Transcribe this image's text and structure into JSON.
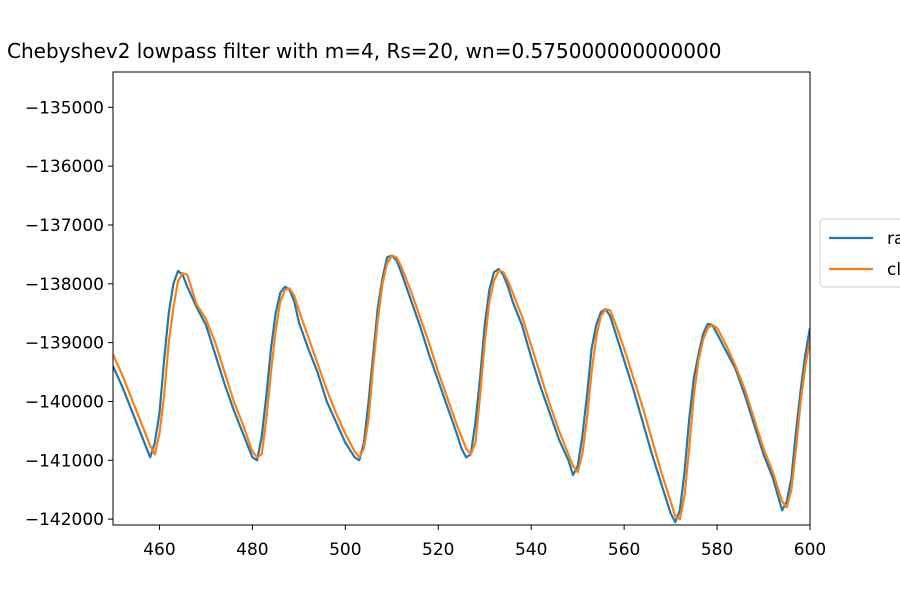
{
  "chart_data": {
    "type": "line",
    "title": "Chebyshev2 lowpass filter with m=4, Rs=20, wn=0.575000000000000",
    "xlabel": "",
    "ylabel": "",
    "xlim": [
      450,
      600
    ],
    "ylim": [
      -142100,
      -134400
    ],
    "xticks": [
      460,
      480,
      500,
      520,
      540,
      560,
      580,
      600
    ],
    "yticks": [
      -142000,
      -141000,
      -140000,
      -139000,
      -138000,
      -137000,
      -136000,
      -135000
    ],
    "xtick_labels": [
      "460",
      "480",
      "500",
      "520",
      "540",
      "560",
      "580",
      "600"
    ],
    "ytick_labels": [
      "−142000",
      "−141000",
      "−140000",
      "−139000",
      "−138000",
      "−137000",
      "−136000",
      "−135000"
    ],
    "grid": false,
    "legend_placement": "center-right (partially cut off)",
    "series": [
      {
        "name": "ra",
        "color": "#1f77b4",
        "points": [
          [
            450,
            -139400
          ],
          [
            452,
            -139750
          ],
          [
            454,
            -140150
          ],
          [
            456,
            -140550
          ],
          [
            458,
            -140950
          ],
          [
            459,
            -140700
          ],
          [
            460,
            -140200
          ],
          [
            461,
            -139300
          ],
          [
            462,
            -138500
          ],
          [
            463,
            -138000
          ],
          [
            464,
            -137780
          ],
          [
            465,
            -137850
          ],
          [
            466,
            -138050
          ],
          [
            468,
            -138400
          ],
          [
            470,
            -138700
          ],
          [
            472,
            -139200
          ],
          [
            474,
            -139700
          ],
          [
            476,
            -140150
          ],
          [
            478,
            -140550
          ],
          [
            480,
            -140950
          ],
          [
            481,
            -141000
          ],
          [
            482,
            -140600
          ],
          [
            483,
            -139900
          ],
          [
            484,
            -139100
          ],
          [
            485,
            -138500
          ],
          [
            486,
            -138150
          ],
          [
            487,
            -138050
          ],
          [
            488,
            -138100
          ],
          [
            489,
            -138300
          ],
          [
            490,
            -138650
          ],
          [
            492,
            -139100
          ],
          [
            494,
            -139500
          ],
          [
            496,
            -140000
          ],
          [
            498,
            -140350
          ],
          [
            500,
            -140700
          ],
          [
            502,
            -140950
          ],
          [
            503,
            -141000
          ],
          [
            504,
            -140700
          ],
          [
            505,
            -140000
          ],
          [
            506,
            -139200
          ],
          [
            507,
            -138400
          ],
          [
            508,
            -137900
          ],
          [
            509,
            -137550
          ],
          [
            510,
            -137520
          ],
          [
            511,
            -137600
          ],
          [
            512,
            -137800
          ],
          [
            514,
            -138250
          ],
          [
            516,
            -138700
          ],
          [
            518,
            -139200
          ],
          [
            520,
            -139650
          ],
          [
            522,
            -140100
          ],
          [
            524,
            -140550
          ],
          [
            525,
            -140800
          ],
          [
            526,
            -140950
          ],
          [
            527,
            -140900
          ],
          [
            528,
            -140350
          ],
          [
            529,
            -139600
          ],
          [
            530,
            -138700
          ],
          [
            531,
            -138100
          ],
          [
            532,
            -137800
          ],
          [
            533,
            -137750
          ],
          [
            534,
            -137850
          ],
          [
            535,
            -138050
          ],
          [
            536,
            -138300
          ],
          [
            538,
            -138700
          ],
          [
            540,
            -139250
          ],
          [
            542,
            -139750
          ],
          [
            544,
            -140200
          ],
          [
            546,
            -140650
          ],
          [
            548,
            -141000
          ],
          [
            549,
            -141250
          ],
          [
            550,
            -141100
          ],
          [
            551,
            -140600
          ],
          [
            552,
            -139900
          ],
          [
            553,
            -139100
          ],
          [
            554,
            -138700
          ],
          [
            555,
            -138480
          ],
          [
            556,
            -138430
          ],
          [
            557,
            -138550
          ],
          [
            558,
            -138800
          ],
          [
            560,
            -139300
          ],
          [
            562,
            -139800
          ],
          [
            564,
            -140350
          ],
          [
            566,
            -140900
          ],
          [
            568,
            -141400
          ],
          [
            570,
            -141900
          ],
          [
            571,
            -142050
          ],
          [
            572,
            -141850
          ],
          [
            573,
            -141200
          ],
          [
            574,
            -140300
          ],
          [
            575,
            -139600
          ],
          [
            576,
            -139200
          ],
          [
            577,
            -138850
          ],
          [
            578,
            -138680
          ],
          [
            579,
            -138700
          ],
          [
            580,
            -138850
          ],
          [
            582,
            -139150
          ],
          [
            584,
            -139450
          ],
          [
            586,
            -139900
          ],
          [
            588,
            -140400
          ],
          [
            590,
            -140900
          ],
          [
            592,
            -141300
          ],
          [
            594,
            -141850
          ],
          [
            595,
            -141700
          ],
          [
            596,
            -141300
          ],
          [
            597,
            -140500
          ],
          [
            598,
            -139800
          ],
          [
            599,
            -139200
          ],
          [
            600,
            -138750
          ]
        ]
      },
      {
        "name": "cl",
        "color": "#ff7f0e",
        "points": [
          [
            450,
            -139200
          ],
          [
            452,
            -139550
          ],
          [
            454,
            -139950
          ],
          [
            456,
            -140350
          ],
          [
            458,
            -140750
          ],
          [
            459,
            -140900
          ],
          [
            460,
            -140550
          ],
          [
            461,
            -139900
          ],
          [
            462,
            -139000
          ],
          [
            463,
            -138400
          ],
          [
            464,
            -137950
          ],
          [
            465,
            -137820
          ],
          [
            466,
            -137850
          ],
          [
            467,
            -138100
          ],
          [
            468,
            -138350
          ],
          [
            470,
            -138600
          ],
          [
            472,
            -139000
          ],
          [
            474,
            -139500
          ],
          [
            476,
            -140000
          ],
          [
            478,
            -140400
          ],
          [
            480,
            -140850
          ],
          [
            481,
            -140950
          ],
          [
            482,
            -140900
          ],
          [
            483,
            -140300
          ],
          [
            484,
            -139500
          ],
          [
            485,
            -138800
          ],
          [
            486,
            -138300
          ],
          [
            487,
            -138100
          ],
          [
            488,
            -138080
          ],
          [
            489,
            -138200
          ],
          [
            490,
            -138450
          ],
          [
            492,
            -138900
          ],
          [
            494,
            -139350
          ],
          [
            496,
            -139800
          ],
          [
            498,
            -140200
          ],
          [
            500,
            -140550
          ],
          [
            502,
            -140850
          ],
          [
            503,
            -140950
          ],
          [
            504,
            -140800
          ],
          [
            505,
            -140300
          ],
          [
            506,
            -139400
          ],
          [
            507,
            -138600
          ],
          [
            508,
            -138000
          ],
          [
            509,
            -137650
          ],
          [
            510,
            -137520
          ],
          [
            511,
            -137550
          ],
          [
            512,
            -137700
          ],
          [
            514,
            -138100
          ],
          [
            516,
            -138550
          ],
          [
            518,
            -139000
          ],
          [
            520,
            -139500
          ],
          [
            522,
            -139950
          ],
          [
            524,
            -140400
          ],
          [
            526,
            -140800
          ],
          [
            527,
            -140900
          ],
          [
            528,
            -140700
          ],
          [
            529,
            -139900
          ],
          [
            530,
            -139000
          ],
          [
            531,
            -138300
          ],
          [
            532,
            -137950
          ],
          [
            533,
            -137780
          ],
          [
            534,
            -137800
          ],
          [
            535,
            -137950
          ],
          [
            536,
            -138150
          ],
          [
            538,
            -138550
          ],
          [
            540,
            -139050
          ],
          [
            542,
            -139550
          ],
          [
            544,
            -140050
          ],
          [
            546,
            -140500
          ],
          [
            548,
            -140900
          ],
          [
            549,
            -141100
          ],
          [
            550,
            -141200
          ],
          [
            551,
            -140900
          ],
          [
            552,
            -140300
          ],
          [
            553,
            -139500
          ],
          [
            554,
            -138900
          ],
          [
            555,
            -138550
          ],
          [
            556,
            -138430
          ],
          [
            557,
            -138450
          ],
          [
            558,
            -138650
          ],
          [
            560,
            -139100
          ],
          [
            562,
            -139600
          ],
          [
            564,
            -140100
          ],
          [
            566,
            -140650
          ],
          [
            568,
            -141200
          ],
          [
            570,
            -141700
          ],
          [
            571,
            -141950
          ],
          [
            572,
            -142000
          ],
          [
            573,
            -141600
          ],
          [
            574,
            -140800
          ],
          [
            575,
            -139900
          ],
          [
            576,
            -139300
          ],
          [
            577,
            -138950
          ],
          [
            578,
            -138750
          ],
          [
            579,
            -138700
          ],
          [
            580,
            -138750
          ],
          [
            582,
            -139050
          ],
          [
            584,
            -139400
          ],
          [
            586,
            -139800
          ],
          [
            588,
            -140300
          ],
          [
            590,
            -140800
          ],
          [
            592,
            -141200
          ],
          [
            594,
            -141700
          ],
          [
            595,
            -141800
          ],
          [
            596,
            -141500
          ],
          [
            597,
            -140800
          ],
          [
            598,
            -140000
          ],
          [
            599,
            -139400
          ],
          [
            600,
            -138950
          ]
        ]
      }
    ]
  }
}
